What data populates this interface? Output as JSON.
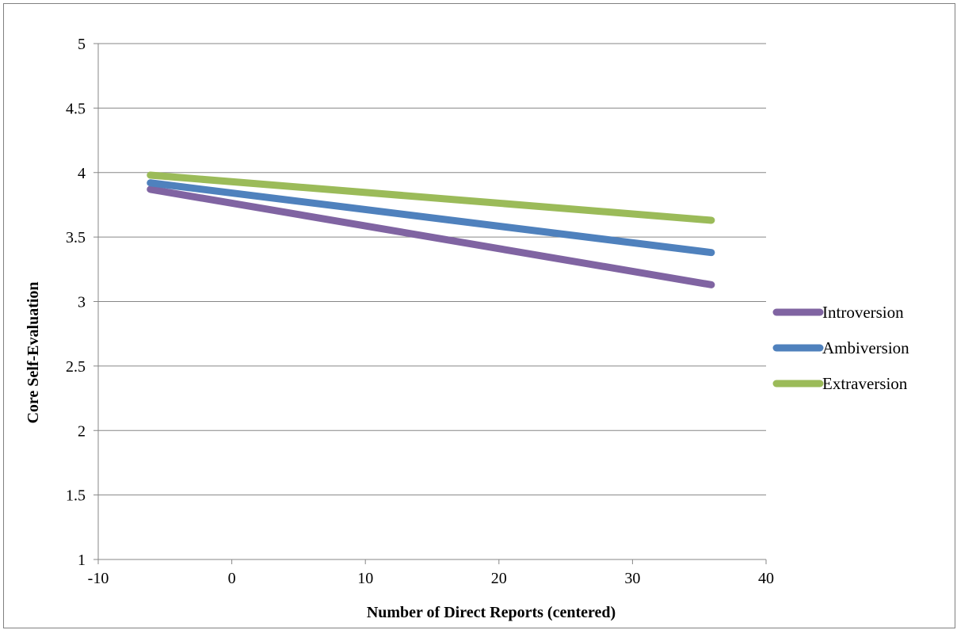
{
  "chart_data": {
    "type": "line",
    "title": "",
    "xlabel": "Number of Direct Reports (centered)",
    "ylabel": "Core Self-Evaluation",
    "xlim": [
      -10,
      40
    ],
    "ylim": [
      1,
      5
    ],
    "x_ticks": [
      -10,
      0,
      10,
      20,
      30,
      40
    ],
    "y_ticks": [
      1,
      1.5,
      2,
      2.5,
      3,
      3.5,
      4,
      4.5,
      5
    ],
    "x_tick_labels": [
      "-10",
      "0",
      "10",
      "20",
      "30",
      "40"
    ],
    "y_tick_labels": [
      "1",
      "1.5",
      "2",
      "2.5",
      "3",
      "3.5",
      "4",
      "4.5",
      "5"
    ],
    "grid": true,
    "legend_position": "right",
    "series": [
      {
        "name": "Introversion",
        "color": "#8064a2",
        "x": [
          -6.1,
          35.9
        ],
        "y": [
          3.87,
          3.13
        ]
      },
      {
        "name": "Ambiversion",
        "color": "#4f81bd",
        "x": [
          -6.1,
          35.9
        ],
        "y": [
          3.92,
          3.38
        ]
      },
      {
        "name": "Extraversion",
        "color": "#9bbb59",
        "x": [
          -6.1,
          35.9
        ],
        "y": [
          3.98,
          3.63
        ]
      }
    ]
  }
}
